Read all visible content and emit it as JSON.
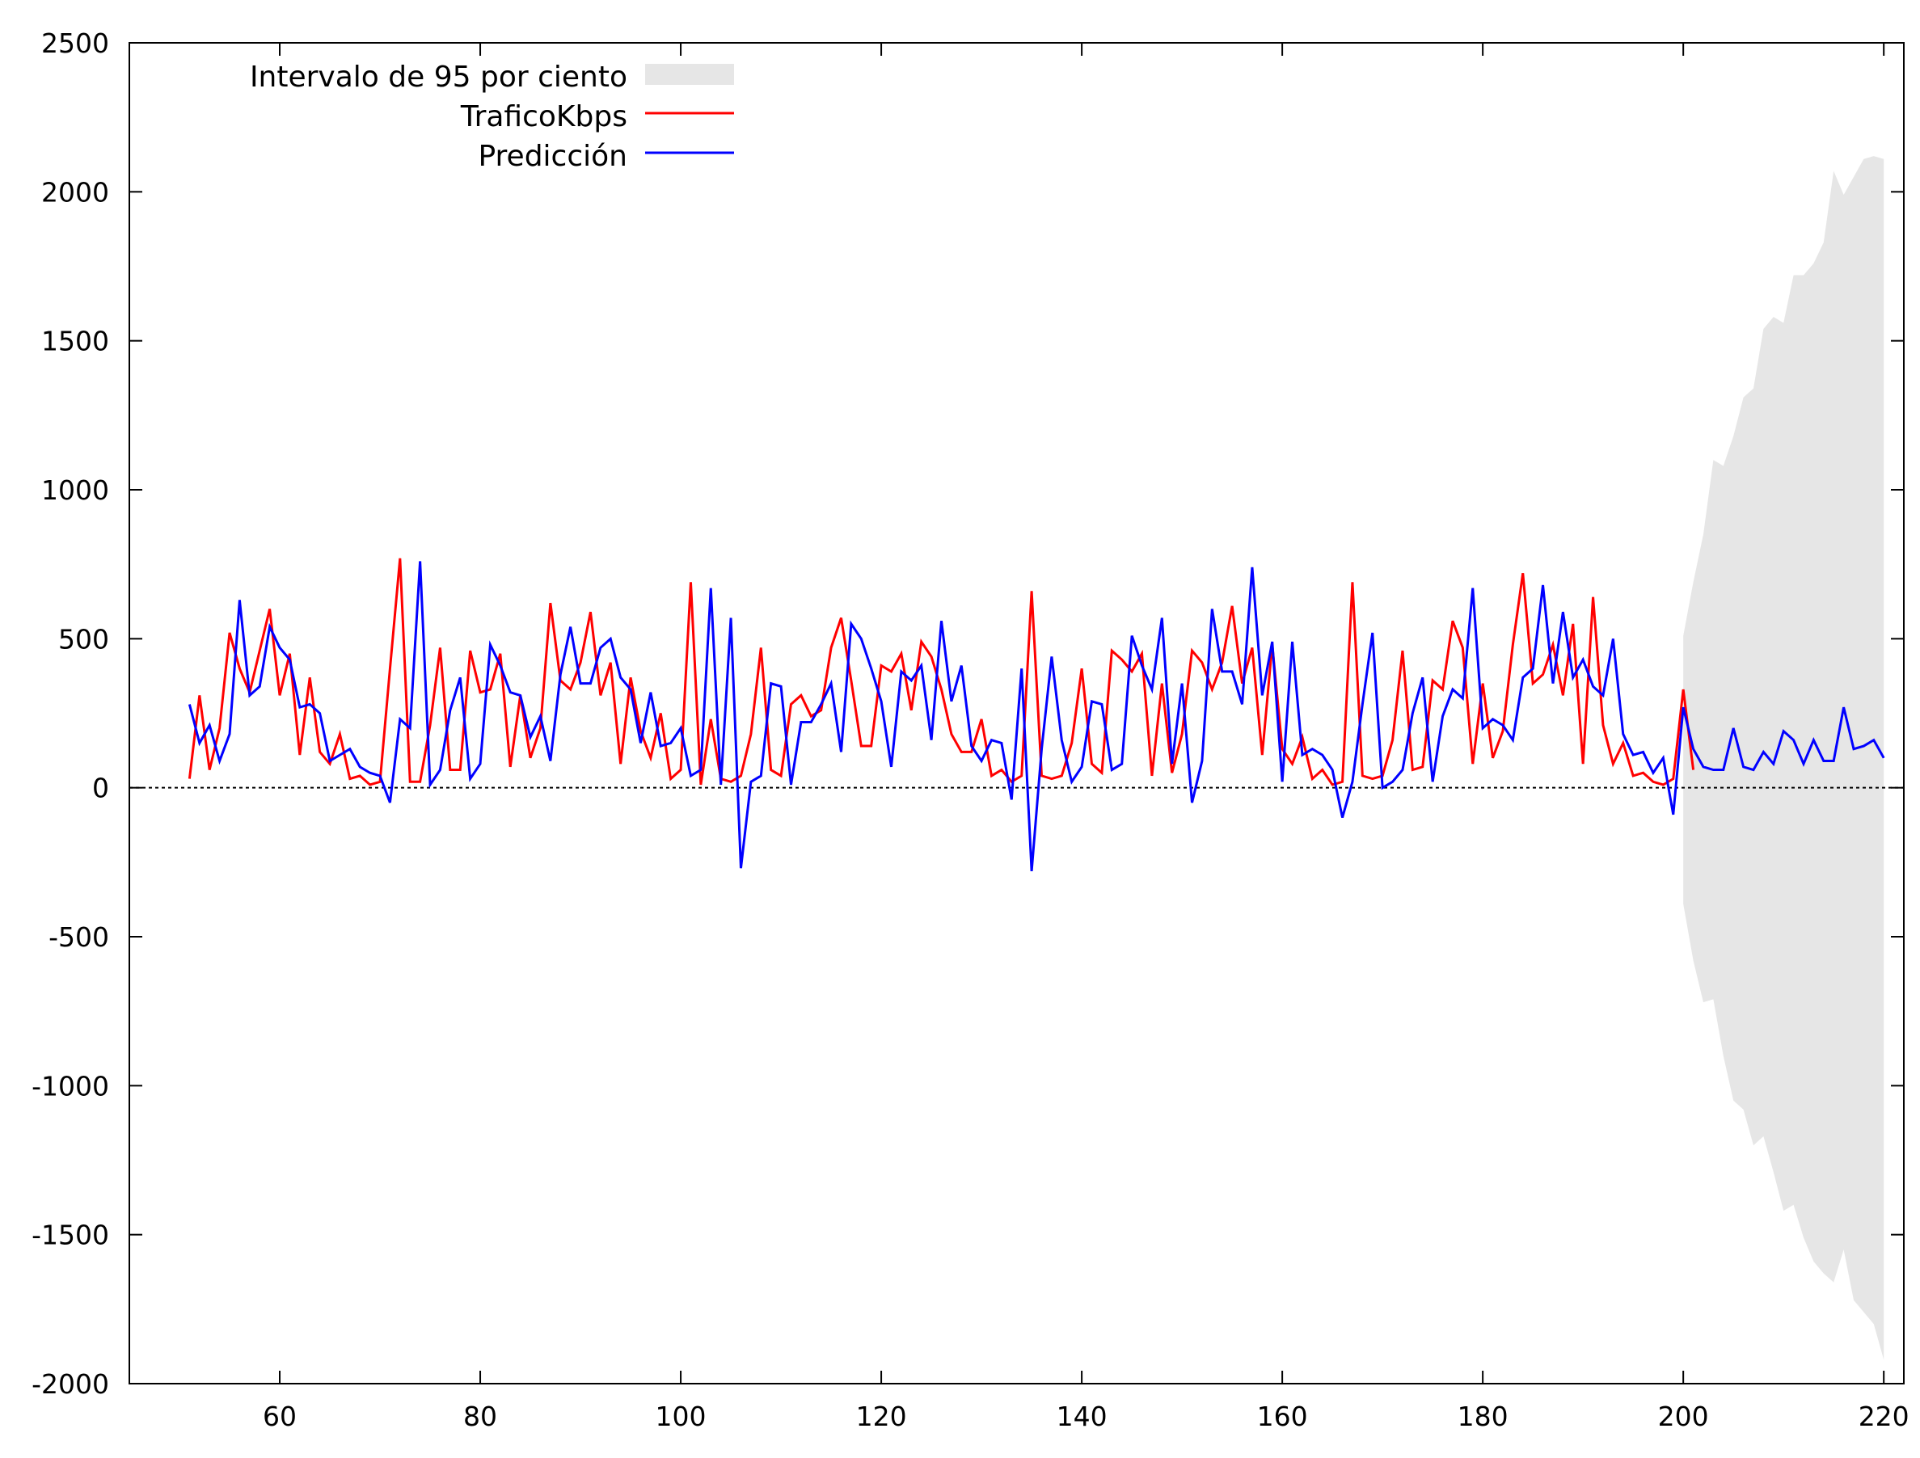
{
  "chart_data": {
    "type": "line",
    "title": "",
    "xlabel": "",
    "ylabel": "",
    "xlim": [
      45,
      222
    ],
    "ylim": [
      -2000,
      2500
    ],
    "xticks": [
      60,
      80,
      100,
      120,
      140,
      160,
      180,
      200,
      220
    ],
    "yticks": [
      -2000,
      -1500,
      -1000,
      -500,
      0,
      500,
      1000,
      1500,
      2000,
      2500
    ],
    "grid": false,
    "legend_position": "top-left",
    "zero_line": true,
    "colors": {
      "band": "#e6e6e6",
      "observed": "#ff0000",
      "prediction": "#0000ff",
      "axis": "#000000"
    },
    "legend": [
      {
        "label": "Intervalo de 95 por ciento",
        "kind": "band"
      },
      {
        "label": "TraficoKbps",
        "kind": "observed"
      },
      {
        "label": "Predicción",
        "kind": "prediction"
      }
    ],
    "band": {
      "name": "Intervalo de 95 por ciento",
      "x": [
        200,
        201,
        202,
        203,
        204,
        205,
        206,
        207,
        208,
        209,
        210,
        211,
        212,
        213,
        214,
        215,
        216,
        217,
        218,
        219,
        220
      ],
      "upper": [
        510,
        690,
        850,
        1100,
        1080,
        1180,
        1310,
        1340,
        1540,
        1580,
        1560,
        1720,
        1720,
        1760,
        1830,
        2070,
        1990,
        2050,
        2110,
        2120,
        2110
      ],
      "lower": [
        -390,
        -580,
        -720,
        -710,
        -900,
        -1050,
        -1080,
        -1200,
        -1170,
        -1290,
        -1420,
        -1400,
        -1510,
        -1590,
        -1630,
        -1660,
        -1550,
        -1720,
        -1760,
        -1800,
        -1920
      ]
    },
    "series": [
      {
        "name": "TraficoKbps",
        "x_start": 51,
        "values": [
          30,
          310,
          60,
          200,
          520,
          400,
          320,
          460,
          600,
          310,
          450,
          110,
          370,
          120,
          80,
          180,
          30,
          40,
          10,
          20,
          400,
          770,
          20,
          20,
          210,
          470,
          60,
          60,
          460,
          320,
          330,
          450,
          70,
          310,
          100,
          200,
          620,
          360,
          330,
          420,
          590,
          310,
          420,
          80,
          370,
          190,
          100,
          250,
          30,
          60,
          690,
          10,
          230,
          30,
          20,
          40,
          180,
          470,
          60,
          40,
          280,
          310,
          240,
          260,
          470,
          570,
          360,
          140,
          140,
          410,
          390,
          450,
          260,
          490,
          440,
          330,
          180,
          120,
          120,
          230,
          40,
          60,
          20,
          40,
          660,
          40,
          30,
          40,
          150,
          400,
          80,
          50,
          460,
          430,
          390,
          450,
          40,
          350,
          50,
          180,
          460,
          420,
          330,
          420,
          610,
          350,
          470,
          110,
          480,
          130,
          80,
          170,
          30,
          60,
          10,
          20,
          690,
          40,
          30,
          40,
          160,
          460,
          60,
          70,
          360,
          330,
          560,
          470,
          80,
          350,
          100,
          190,
          480,
          720,
          350,
          380,
          480,
          310,
          550,
          80,
          640,
          210,
          80,
          150,
          40,
          50,
          20,
          10,
          30,
          330,
          60
        ],
        "line": "solid"
      },
      {
        "name": "Predicción",
        "x_start": 51,
        "values": [
          280,
          150,
          210,
          90,
          180,
          630,
          310,
          340,
          540,
          470,
          430,
          270,
          280,
          250,
          90,
          110,
          130,
          70,
          50,
          40,
          -50,
          230,
          200,
          760,
          10,
          60,
          260,
          370,
          30,
          80,
          480,
          410,
          320,
          310,
          170,
          240,
          90,
          380,
          540,
          350,
          350,
          470,
          500,
          370,
          330,
          150,
          320,
          140,
          150,
          200,
          40,
          60,
          670,
          10,
          570,
          -270,
          20,
          40,
          350,
          340,
          10,
          220,
          220,
          280,
          350,
          120,
          550,
          500,
          400,
          290,
          70,
          390,
          360,
          410,
          160,
          560,
          290,
          410,
          140,
          90,
          160,
          150,
          -40,
          400,
          -280,
          130,
          440,
          160,
          20,
          70,
          290,
          280,
          60,
          80,
          510,
          410,
          330,
          570,
          80,
          350,
          -50,
          90,
          600,
          390,
          390,
          280,
          740,
          310,
          490,
          20,
          490,
          110,
          130,
          110,
          60,
          -100,
          20,
          280,
          520,
          0,
          20,
          60,
          250,
          370,
          20,
          240,
          330,
          300,
          670,
          200,
          230,
          210,
          160,
          370,
          400,
          680,
          350,
          590,
          370,
          430,
          340,
          310,
          500,
          180,
          110,
          120,
          50,
          100,
          -90,
          270,
          130,
          70,
          60,
          60,
          200,
          70,
          60,
          120,
          80,
          190,
          160,
          80,
          160,
          90,
          90,
          270,
          130,
          140,
          160,
          100
        ],
        "line": "solid"
      }
    ]
  }
}
